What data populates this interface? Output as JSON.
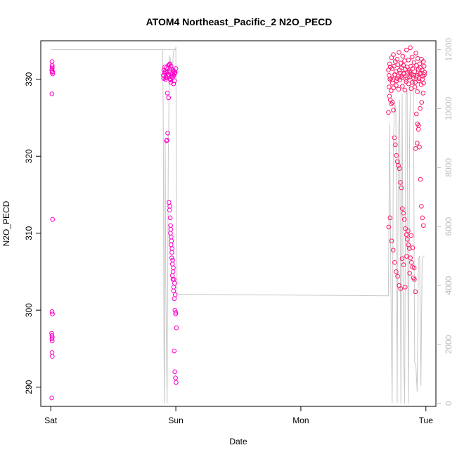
{
  "chart_data": {
    "type": "scatter",
    "title": "ATOM4 Northeast_Pacific_2 N2O_PECD",
    "xlabel": "Date",
    "ylabel": "N2O_PECD",
    "x_ticks": [
      {
        "pos": 0,
        "label": "Sat"
      },
      {
        "pos": 1,
        "label": "Sun"
      },
      {
        "pos": 2,
        "label": "Mon"
      },
      {
        "pos": 3,
        "label": "Tue"
      }
    ],
    "x_range": [
      -0.08,
      3.08
    ],
    "ylim": [
      287.5,
      335.0
    ],
    "y_ticks": [
      290,
      300,
      310,
      320,
      330
    ],
    "y2lim": [
      -100,
      12300
    ],
    "y2_ticks": [
      0,
      2000,
      4000,
      6000,
      8000,
      10000,
      12000
    ],
    "n2o_color": "#ff00cc",
    "n2o_color_dense": "#ff1a66",
    "altitude_color": "#c8c8c8",
    "n2o_series": [
      {
        "x": [
          0.01,
          0.012,
          0.008,
          0.015,
          0.011,
          0.009,
          0.014,
          0.01,
          0.013,
          0.007,
          0.012,
          0.009,
          0.011,
          0.01,
          0.012,
          0.008,
          0.014,
          0.01,
          0.011,
          0.009
        ],
        "y": [
          332.3,
          331.6,
          331.2,
          330.7,
          331.8,
          328.1,
          311.8,
          299.8,
          299.5,
          297.0,
          296.5,
          296.7,
          296.0,
          294.5,
          294.0,
          288.6,
          331.0,
          330.9,
          331.4,
          296.3
        ]
      },
      {
        "x": [
          0.9,
          0.905,
          0.91,
          0.915,
          0.92,
          0.925,
          0.93,
          0.935,
          0.94,
          0.945,
          0.95,
          0.955,
          0.96,
          0.965,
          0.97,
          0.975,
          0.98,
          0.985,
          0.99,
          0.995,
          1.0,
          0.903,
          0.912,
          0.922,
          0.932,
          0.942,
          0.952,
          0.962,
          0.972,
          0.982,
          0.992,
          0.918,
          0.928,
          0.938,
          0.948,
          0.958,
          0.968,
          0.978,
          0.988
        ],
        "y": [
          330.5,
          331.2,
          330.8,
          331.0,
          330.2,
          331.5,
          330.9,
          330.4,
          331.8,
          330.6,
          331.1,
          330.0,
          329.6,
          331.3,
          330.7,
          330.3,
          331.0,
          330.5,
          329.8,
          330.9,
          331.4,
          330.1,
          331.6,
          330.3,
          328.2,
          327.6,
          332.0,
          331.7,
          330.2,
          329.4,
          330.8,
          330.0,
          331.0,
          330.6,
          331.9,
          329.9,
          330.4,
          331.2,
          330.7
        ]
      },
      {
        "x": [
          0.925,
          0.93,
          0.935,
          0.945,
          0.95,
          0.955,
          0.96,
          0.965,
          0.97,
          0.975,
          0.98,
          0.985,
          0.99,
          0.995,
          1.0,
          1.005,
          0.952,
          0.958,
          0.963,
          0.968,
          0.973,
          0.978,
          0.983,
          0.988,
          0.993,
          0.998,
          0.957,
          0.962,
          0.967,
          0.972,
          0.977,
          0.982,
          0.987,
          0.992,
          0.997,
          1.002
        ],
        "y": [
          322.0,
          322.1,
          323.0,
          314.0,
          313.0,
          312.0,
          310.5,
          309.0,
          308.0,
          306.5,
          305.5,
          304.0,
          303.5,
          302.0,
          299.7,
          297.7,
          313.5,
          311.0,
          309.5,
          307.5,
          306.0,
          305.0,
          303.0,
          301.5,
          300.0,
          299.5,
          310.0,
          308.5,
          306.8,
          304.5,
          304.0,
          302.5,
          294.7,
          292.0,
          291.2,
          290.6
        ]
      },
      {
        "x": [
          2.7,
          2.705,
          2.71,
          2.715,
          2.72,
          2.725,
          2.73,
          2.735,
          2.74,
          2.745,
          2.75,
          2.755,
          2.76,
          2.765,
          2.77,
          2.775,
          2.78,
          2.785,
          2.79,
          2.795,
          2.8,
          2.805,
          2.81,
          2.815,
          2.82,
          2.825,
          2.83,
          2.835,
          2.84,
          2.845,
          2.85,
          2.855,
          2.86,
          2.865,
          2.87,
          2.875,
          2.88,
          2.885,
          2.89,
          2.895,
          2.9,
          2.905,
          2.91,
          2.915,
          2.92,
          2.925,
          2.93,
          2.935,
          2.94,
          2.945,
          2.95,
          2.955,
          2.96,
          2.965,
          2.97,
          2.975,
          2.98,
          2.985,
          2.99
        ],
        "y": [
          331.2,
          330.5,
          332.0,
          331.6,
          330.1,
          332.8,
          331.4,
          330.0,
          333.2,
          331.7,
          330.6,
          332.3,
          331.0,
          329.8,
          332.6,
          331.9,
          330.4,
          333.5,
          331.2,
          330.8,
          332.1,
          331.5,
          330.2,
          333.0,
          331.8,
          330.7,
          332.4,
          331.3,
          330.0,
          333.8,
          331.6,
          330.9,
          332.5,
          331.1,
          330.3,
          334.1,
          331.7,
          330.6,
          332.9,
          331.4,
          330.2,
          332.2,
          331.0,
          329.6,
          333.4,
          331.8,
          330.5,
          332.7,
          331.3,
          330.1,
          332.0,
          331.5,
          330.8,
          332.6,
          331.2,
          330.4,
          332.3,
          331.7,
          330.9
        ]
      },
      {
        "x": [
          2.705,
          2.712,
          2.722,
          2.732,
          2.742,
          2.752,
          2.762,
          2.772,
          2.782,
          2.792,
          2.802,
          2.812,
          2.822,
          2.832,
          2.842,
          2.852,
          2.862,
          2.872,
          2.882,
          2.892,
          2.902,
          2.912,
          2.922,
          2.932,
          2.942,
          2.952,
          2.962,
          2.972,
          2.982,
          2.988
        ],
        "y": [
          329.0,
          330.0,
          328.5,
          329.5,
          328.9,
          330.6,
          329.2,
          330.1,
          328.7,
          329.9,
          330.4,
          329.1,
          330.8,
          328.6,
          329.7,
          330.2,
          329.4,
          330.9,
          328.8,
          329.6,
          330.5,
          329.0,
          330.3,
          328.4,
          329.8,
          330.7,
          329.3,
          330.0,
          329.5,
          330.6
        ]
      },
      {
        "x": [
          2.7,
          2.708,
          2.716,
          2.724,
          2.732,
          2.74,
          2.748,
          2.756,
          2.764,
          2.772,
          2.78,
          2.788,
          2.796,
          2.804,
          2.812,
          2.82,
          2.828,
          2.836,
          2.844,
          2.852,
          2.86,
          2.868,
          2.876,
          2.884,
          2.892,
          2.9,
          2.908,
          2.916,
          2.924,
          2.932,
          2.94,
          2.948,
          2.956,
          2.964,
          2.972,
          2.98
        ],
        "y": [
          325.7,
          327.8,
          327.3,
          326.8,
          327.0,
          326.0,
          322.4,
          321.5,
          320.1,
          319.3,
          318.8,
          318.4,
          316.6,
          315.9,
          313.2,
          312.6,
          311.8,
          310.6,
          309.8,
          309.2,
          308.5,
          308.0,
          306.8,
          306.2,
          305.6,
          304.2,
          304.0,
          302.4,
          325.5,
          324.2,
          323.5,
          321.2,
          317.0,
          313.5,
          312.0,
          311.0
        ]
      },
      {
        "x": [
          2.702,
          2.714,
          2.726,
          2.738,
          2.75,
          2.762,
          2.774,
          2.786,
          2.798,
          2.81,
          2.822,
          2.834,
          2.846,
          2.858,
          2.87,
          2.882,
          2.894,
          2.906,
          2.918,
          2.93,
          2.942,
          2.954,
          2.966,
          2.978
        ],
        "y": [
          310.8,
          312.0,
          309.0,
          307.8,
          306.2,
          305.0,
          304.4,
          303.2,
          302.8,
          306.7,
          305.9,
          303.0,
          307.0,
          310.3,
          304.8,
          309.7,
          308.1,
          305.5,
          321.0,
          321.7,
          324.0,
          326.2,
          327.0,
          328.2
        ]
      }
    ],
    "altitude_series": {
      "x": [
        0.0,
        0.02,
        0.03,
        1.0,
        0.895,
        0.9,
        0.905,
        0.91,
        0.915,
        0.92,
        0.93,
        0.94,
        0.95,
        0.96,
        0.97,
        0.98,
        0.99,
        1.0,
        1.0,
        1.01,
        1.02,
        2.7,
        2.71,
        2.72,
        2.73,
        2.74,
        2.75,
        2.76,
        2.77,
        2.78,
        2.79,
        2.8,
        2.81,
        2.82,
        2.83,
        2.84,
        2.85,
        2.86,
        2.87,
        2.88,
        2.89,
        2.9,
        2.91,
        2.92,
        2.93,
        2.94,
        2.95,
        2.96,
        2.97,
        2.98,
        2.99
      ],
      "y": [
        12000,
        12000,
        12000,
        12000,
        12000,
        9200,
        2000,
        0,
        9000,
        4000,
        0,
        8500,
        11800,
        11600,
        11000,
        11900,
        12000,
        12050,
        12100,
        3700,
        3700,
        3650,
        9500,
        3900,
        0,
        8800,
        10200,
        10000,
        0,
        9000,
        10300,
        0,
        10500,
        2000,
        0,
        10400,
        10600,
        0,
        9200,
        11200,
        11000,
        10800,
        1400,
        1300,
        400,
        4900,
        5000,
        600,
        4900,
        5000,
        5000
      ]
    }
  }
}
